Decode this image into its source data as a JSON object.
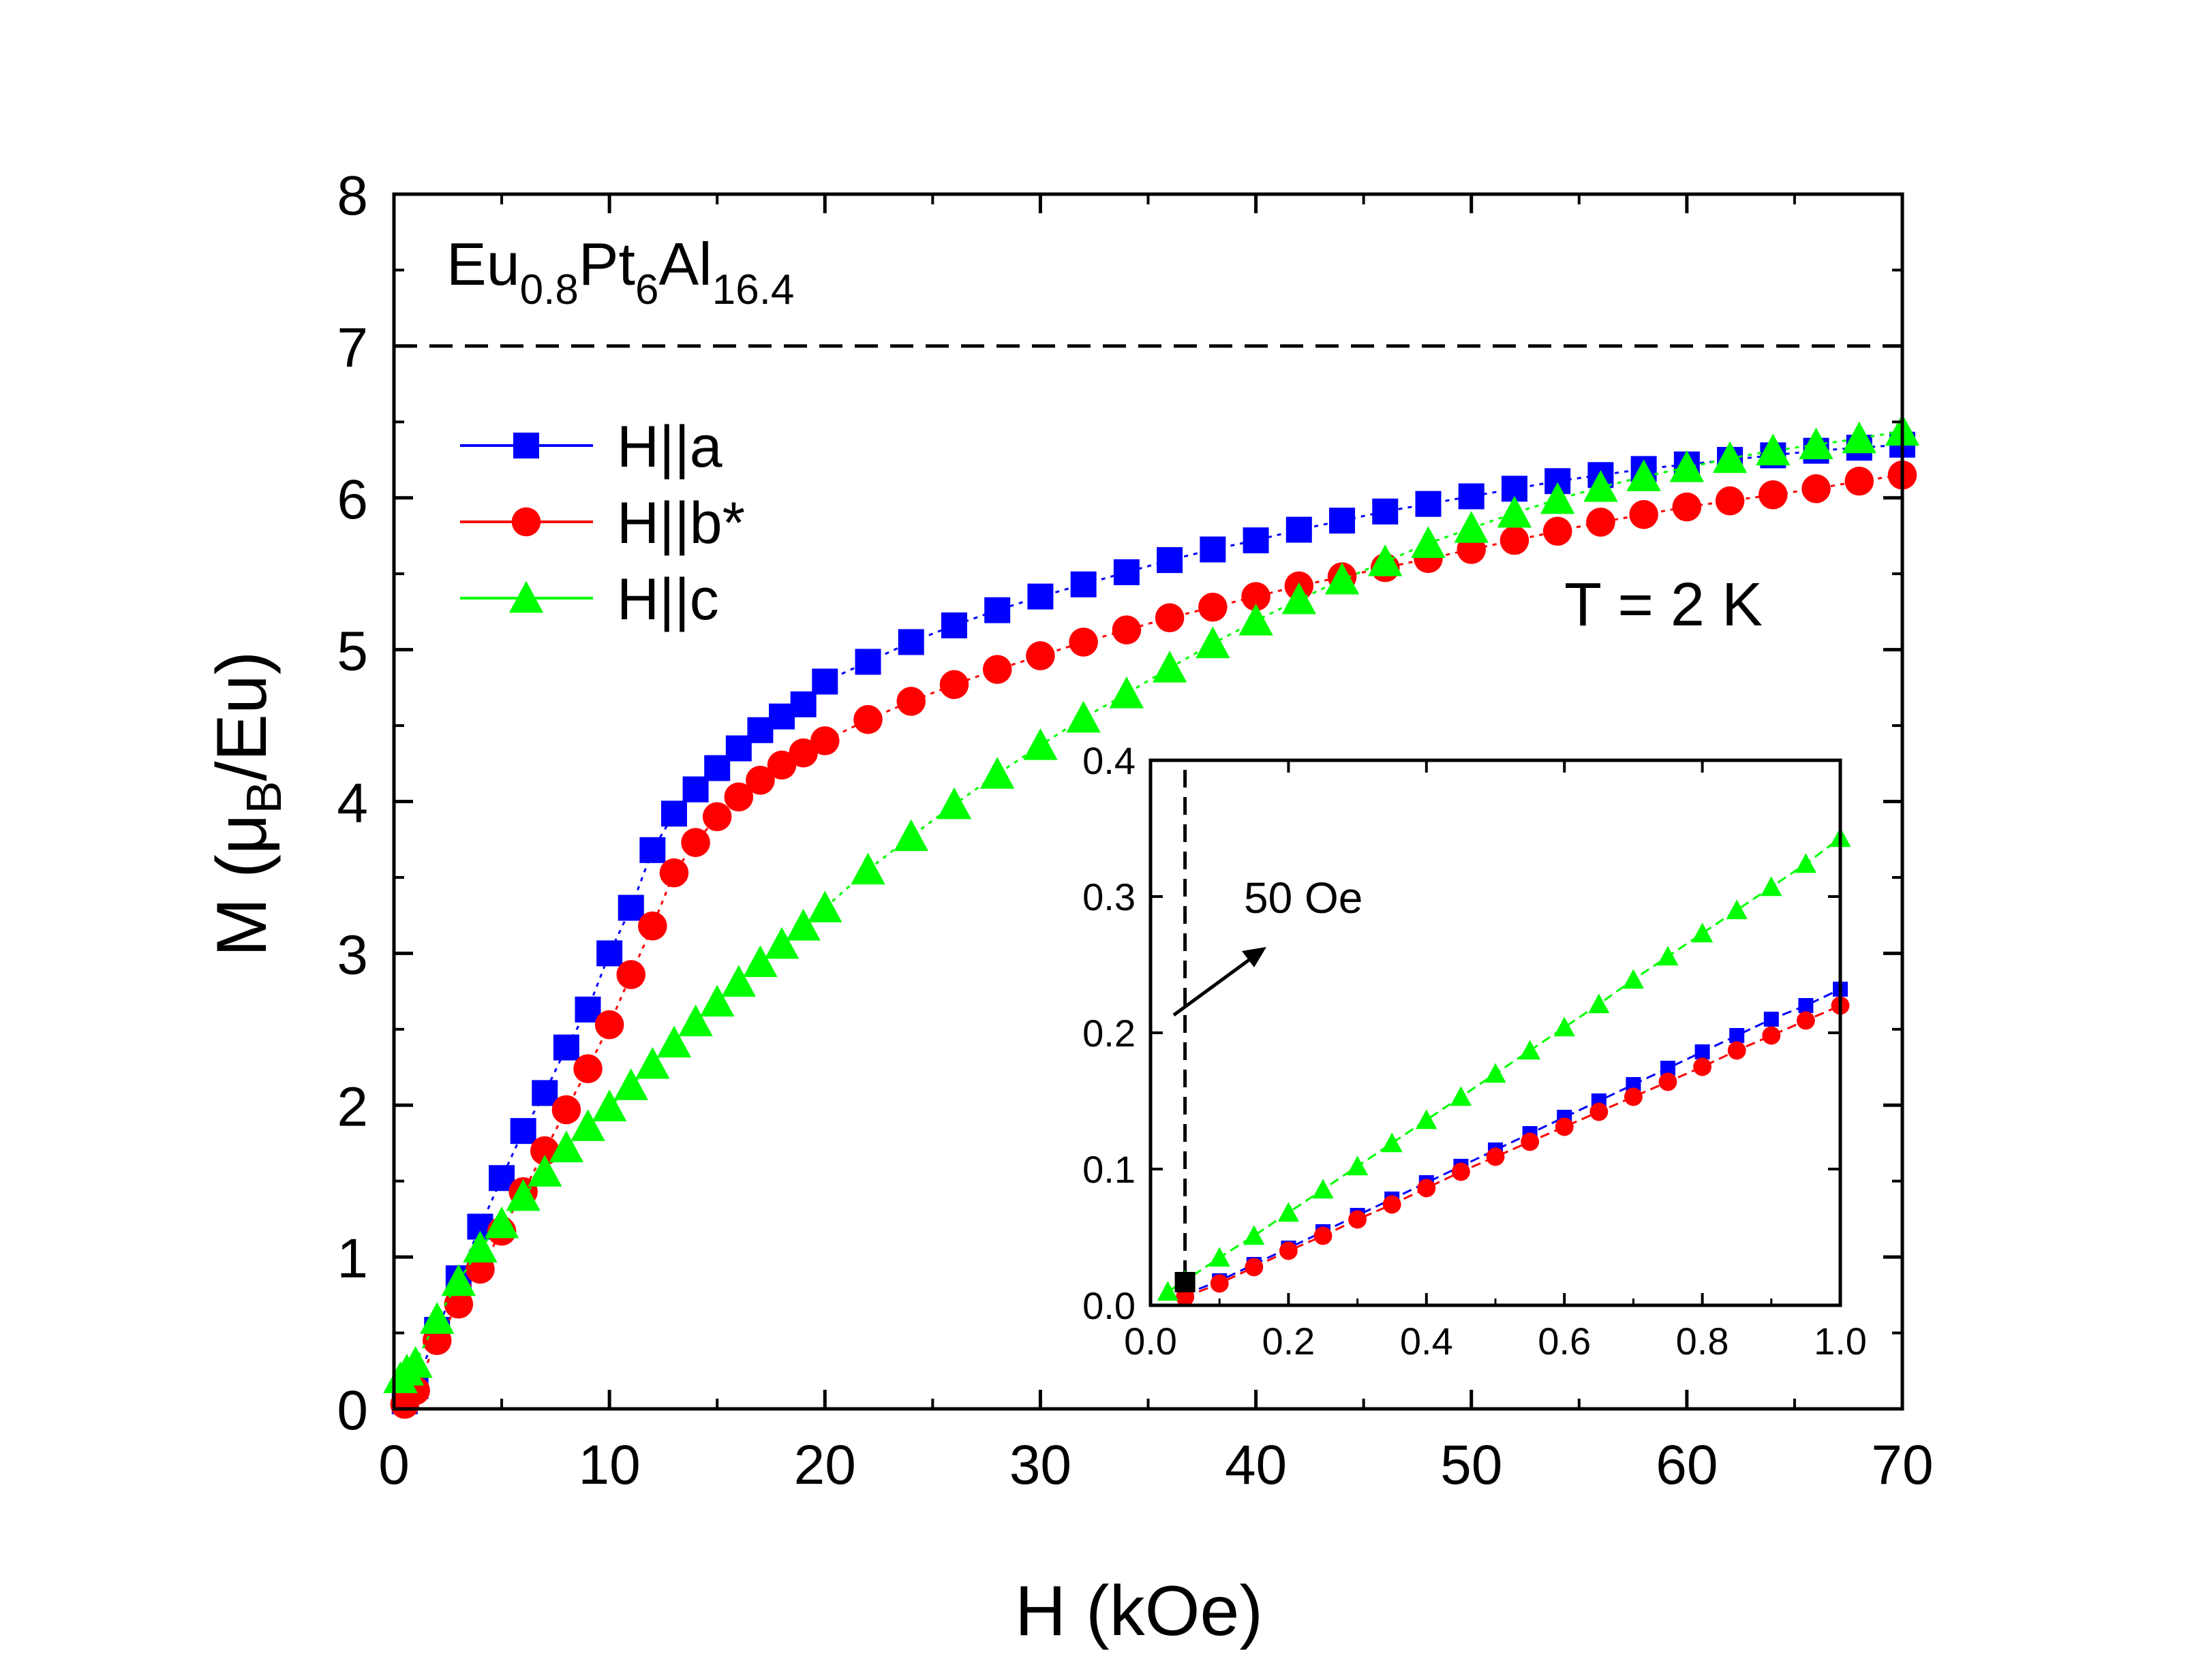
{
  "chart_data": {
    "type": "scatter",
    "main": {
      "xlabel": "H (kOe)",
      "ylabel": {
        "prefix": "M (",
        "mu": "μ",
        "sub": "B",
        "suffix": "/Eu)"
      },
      "xlim": [
        0,
        70
      ],
      "ylim": [
        0,
        8
      ],
      "xticks": [
        0,
        10,
        20,
        30,
        40,
        50,
        60,
        70
      ],
      "yticks": [
        0,
        1,
        2,
        3,
        4,
        5,
        6,
        7,
        8
      ],
      "hline": 7,
      "annotations": {
        "compound": {
          "base": "Eu",
          "s1": "0.8",
          "mid": "Pt",
          "s2": "6",
          "tail": "Al",
          "s3": "16.4"
        },
        "temperature": "T = 2 K"
      },
      "legend_position": "upper-left",
      "series": [
        {
          "name": "H||a",
          "marker": "square",
          "color": "#0000ff",
          "x": [
            0.5,
            1,
            2,
            3,
            4,
            5,
            6,
            7,
            8,
            9,
            10,
            11,
            12,
            13,
            14,
            15,
            16,
            17,
            18,
            19,
            20,
            22,
            24,
            26,
            28,
            30,
            32,
            34,
            36,
            38,
            40,
            42,
            44,
            46,
            48,
            50,
            52,
            54,
            56,
            58,
            60,
            62,
            64,
            66,
            68,
            70
          ],
          "y": [
            0.05,
            0.15,
            0.52,
            0.86,
            1.2,
            1.52,
            1.83,
            2.08,
            2.38,
            2.63,
            3.0,
            3.3,
            3.68,
            3.92,
            4.08,
            4.22,
            4.35,
            4.47,
            4.56,
            4.64,
            4.79,
            4.92,
            5.05,
            5.16,
            5.26,
            5.35,
            5.43,
            5.51,
            5.59,
            5.66,
            5.72,
            5.79,
            5.85,
            5.91,
            5.96,
            6.01,
            6.06,
            6.11,
            6.15,
            6.19,
            6.22,
            6.25,
            6.28,
            6.31,
            6.33,
            6.35
          ]
        },
        {
          "name": "H||b*",
          "marker": "circle",
          "color": "#ff0000",
          "x": [
            0.5,
            1,
            2,
            3,
            4,
            5,
            6,
            7,
            8,
            9,
            10,
            11,
            12,
            13,
            14,
            15,
            16,
            17,
            18,
            19,
            20,
            22,
            24,
            26,
            28,
            30,
            32,
            34,
            36,
            38,
            40,
            42,
            44,
            46,
            48,
            50,
            52,
            54,
            56,
            58,
            60,
            62,
            64,
            66,
            68,
            70
          ],
          "y": [
            0.03,
            0.12,
            0.45,
            0.69,
            0.92,
            1.17,
            1.43,
            1.7,
            1.97,
            2.24,
            2.53,
            2.86,
            3.18,
            3.53,
            3.73,
            3.9,
            4.03,
            4.14,
            4.24,
            4.32,
            4.4,
            4.54,
            4.66,
            4.77,
            4.87,
            4.96,
            5.05,
            5.13,
            5.21,
            5.28,
            5.35,
            5.42,
            5.48,
            5.54,
            5.6,
            5.66,
            5.72,
            5.78,
            5.84,
            5.89,
            5.94,
            5.98,
            6.02,
            6.06,
            6.11,
            6.15
          ]
        },
        {
          "name": "H||c",
          "marker": "triangle",
          "color": "#00ff00",
          "x": [
            0.3,
            0.6,
            1,
            2,
            3,
            4,
            5,
            6,
            7,
            8,
            9,
            10,
            11,
            12,
            13,
            14,
            15,
            16,
            17,
            18,
            19,
            20,
            22,
            24,
            26,
            28,
            30,
            32,
            34,
            36,
            38,
            40,
            42,
            44,
            46,
            48,
            50,
            52,
            54,
            56,
            58,
            60,
            62,
            64,
            66,
            68,
            70
          ],
          "y": [
            0.2,
            0.25,
            0.3,
            0.59,
            0.84,
            1.06,
            1.22,
            1.4,
            1.56,
            1.72,
            1.86,
            1.99,
            2.13,
            2.27,
            2.41,
            2.55,
            2.68,
            2.81,
            2.94,
            3.06,
            3.18,
            3.3,
            3.55,
            3.77,
            3.98,
            4.18,
            4.37,
            4.55,
            4.71,
            4.88,
            5.04,
            5.19,
            5.33,
            5.46,
            5.58,
            5.7,
            5.8,
            5.9,
            5.99,
            6.07,
            6.14,
            6.2,
            6.26,
            6.31,
            6.35,
            6.39,
            6.44
          ]
        }
      ]
    },
    "inset": {
      "xlim": [
        0,
        1.0
      ],
      "ylim": [
        0,
        0.4
      ],
      "xticks": [
        "0.0",
        "0.2",
        "0.4",
        "0.6",
        "0.8",
        "1.0"
      ],
      "yticks": [
        "0.0",
        "0.1",
        "0.2",
        "0.3",
        "0.4"
      ],
      "vline": 0.05,
      "marked_point": {
        "x": 0.05,
        "y": 0.017
      },
      "annotation": "50 Oe",
      "series": [
        {
          "name": "H||a",
          "marker": "square",
          "color": "#0000ff",
          "x": [
            0.05,
            0.1,
            0.15,
            0.2,
            0.25,
            0.3,
            0.35,
            0.4,
            0.45,
            0.5,
            0.55,
            0.6,
            0.65,
            0.7,
            0.75,
            0.8,
            0.85,
            0.9,
            0.95,
            1.0
          ],
          "y": [
            0.008,
            0.018,
            0.03,
            0.042,
            0.054,
            0.066,
            0.078,
            0.09,
            0.102,
            0.114,
            0.126,
            0.138,
            0.15,
            0.162,
            0.174,
            0.186,
            0.198,
            0.21,
            0.22,
            0.232
          ]
        },
        {
          "name": "H||b*",
          "marker": "circle",
          "color": "#ff0000",
          "x": [
            0.05,
            0.1,
            0.15,
            0.2,
            0.25,
            0.3,
            0.35,
            0.4,
            0.45,
            0.5,
            0.55,
            0.6,
            0.65,
            0.7,
            0.75,
            0.8,
            0.85,
            0.9,
            0.95,
            1.0
          ],
          "y": [
            0.006,
            0.016,
            0.028,
            0.04,
            0.051,
            0.063,
            0.074,
            0.086,
            0.098,
            0.109,
            0.12,
            0.131,
            0.142,
            0.153,
            0.164,
            0.175,
            0.187,
            0.198,
            0.209,
            0.22
          ]
        },
        {
          "name": "H||c",
          "marker": "triangle",
          "color": "#00ff00",
          "x": [
            0.025,
            0.05,
            0.1,
            0.15,
            0.2,
            0.25,
            0.3,
            0.35,
            0.4,
            0.45,
            0.5,
            0.55,
            0.6,
            0.65,
            0.7,
            0.75,
            0.8,
            0.85,
            0.9,
            0.95,
            1.0
          ],
          "y": [
            0.01,
            0.018,
            0.035,
            0.051,
            0.068,
            0.085,
            0.102,
            0.119,
            0.136,
            0.153,
            0.17,
            0.187,
            0.204,
            0.221,
            0.239,
            0.256,
            0.273,
            0.29,
            0.307,
            0.324,
            0.343
          ]
        }
      ]
    }
  }
}
